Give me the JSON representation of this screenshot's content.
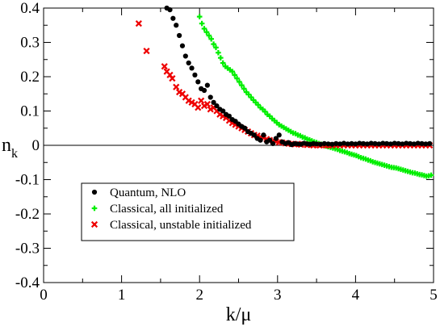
{
  "chart_data": {
    "type": "scatter",
    "title": "",
    "xlabel": "k/μ",
    "ylabel": "n",
    "ylabel_subscript": "k",
    "xlim": [
      0,
      5
    ],
    "ylim": [
      -0.4,
      0.4
    ],
    "x_ticks": [
      0,
      1,
      2,
      3,
      4,
      5
    ],
    "x_tick_labels": [
      "0",
      "1",
      "2",
      "3",
      "4",
      "5"
    ],
    "y_ticks": [
      -0.4,
      -0.3,
      -0.2,
      -0.1,
      0,
      0.1,
      0.2,
      0.3,
      0.4
    ],
    "y_tick_labels": [
      "-0.4",
      "-0.3",
      "-0.2",
      "-0.1",
      "0",
      "0.1",
      "0.2",
      "0.3",
      "0.4"
    ],
    "grid": false,
    "zero_line": true,
    "legend_position": "bottom-left",
    "series": [
      {
        "name": "Quantum, NLO",
        "marker": "circle",
        "color": "#000000",
        "points": [
          [
            1.58,
            0.4
          ],
          [
            1.62,
            0.395
          ],
          [
            1.66,
            0.37
          ],
          [
            1.7,
            0.35
          ],
          [
            1.74,
            0.32
          ],
          [
            1.78,
            0.29
          ],
          [
            1.82,
            0.26
          ],
          [
            1.86,
            0.24
          ],
          [
            1.9,
            0.225
          ],
          [
            1.94,
            0.205
          ],
          [
            1.98,
            0.185
          ],
          [
            2.02,
            0.165
          ],
          [
            2.06,
            0.16
          ],
          [
            2.1,
            0.175
          ],
          [
            2.14,
            0.14
          ],
          [
            2.18,
            0.125
          ],
          [
            2.22,
            0.115
          ],
          [
            2.26,
            0.105
          ],
          [
            2.3,
            0.1
          ],
          [
            2.34,
            0.09
          ],
          [
            2.38,
            0.085
          ],
          [
            2.42,
            0.075
          ],
          [
            2.46,
            0.07
          ],
          [
            2.5,
            0.062
          ],
          [
            2.54,
            0.055
          ],
          [
            2.58,
            0.05
          ],
          [
            2.62,
            0.04
          ],
          [
            2.66,
            0.035
          ],
          [
            2.7,
            0.03
          ],
          [
            2.74,
            0.02
          ],
          [
            2.78,
            0.015
          ],
          [
            2.82,
            0.03
          ],
          [
            2.86,
            0.01
          ],
          [
            2.9,
            0.015
          ],
          [
            2.94,
            0.005
          ],
          [
            2.98,
            0.02
          ],
          [
            3.02,
            0.03
          ],
          [
            3.06,
            0.01
          ],
          [
            3.1,
            0.005
          ],
          [
            3.14,
            0.008
          ],
          [
            3.18,
            0.002
          ],
          [
            3.22,
            0.005
          ],
          [
            3.26,
            0.004
          ],
          [
            3.3,
            0.003
          ],
          [
            3.34,
            0.006
          ],
          [
            3.38,
            0.004
          ],
          [
            3.42,
            0.003
          ],
          [
            3.46,
            0.005
          ],
          [
            3.5,
            0.004
          ],
          [
            3.55,
            0.003
          ],
          [
            3.6,
            0.005
          ],
          [
            3.65,
            0.004
          ],
          [
            3.7,
            0.003
          ],
          [
            3.75,
            0.005
          ],
          [
            3.8,
            0.004
          ],
          [
            3.85,
            0.006
          ],
          [
            3.9,
            0.004
          ],
          [
            3.95,
            0.005
          ],
          [
            4.0,
            0.004
          ],
          [
            4.05,
            0.006
          ],
          [
            4.1,
            0.005
          ],
          [
            4.15,
            0.004
          ],
          [
            4.2,
            0.006
          ],
          [
            4.25,
            0.005
          ],
          [
            4.3,
            0.004
          ],
          [
            4.35,
            0.006
          ],
          [
            4.4,
            0.005
          ],
          [
            4.45,
            0.004
          ],
          [
            4.5,
            0.006
          ],
          [
            4.55,
            0.005
          ],
          [
            4.6,
            0.004
          ],
          [
            4.65,
            0.006
          ],
          [
            4.7,
            0.005
          ],
          [
            4.75,
            0.004
          ],
          [
            4.8,
            0.006
          ],
          [
            4.85,
            0.005
          ],
          [
            4.9,
            0.004
          ],
          [
            4.95,
            0.005
          ]
        ]
      },
      {
        "name": "Classical, all initialized",
        "marker": "plus",
        "color": "#00ee00",
        "points": [
          [
            2.0,
            0.375
          ],
          [
            2.03,
            0.355
          ],
          [
            2.06,
            0.34
          ],
          [
            2.09,
            0.33
          ],
          [
            2.12,
            0.32
          ],
          [
            2.15,
            0.31
          ],
          [
            2.18,
            0.295
          ],
          [
            2.21,
            0.285
          ],
          [
            2.24,
            0.27
          ],
          [
            2.27,
            0.255
          ],
          [
            2.3,
            0.24
          ],
          [
            2.33,
            0.23
          ],
          [
            2.36,
            0.225
          ],
          [
            2.39,
            0.22
          ],
          [
            2.42,
            0.215
          ],
          [
            2.45,
            0.205
          ],
          [
            2.48,
            0.195
          ],
          [
            2.51,
            0.185
          ],
          [
            2.54,
            0.175
          ],
          [
            2.57,
            0.165
          ],
          [
            2.6,
            0.155
          ],
          [
            2.63,
            0.148
          ],
          [
            2.66,
            0.14
          ],
          [
            2.69,
            0.132
          ],
          [
            2.72,
            0.125
          ],
          [
            2.75,
            0.118
          ],
          [
            2.78,
            0.11
          ],
          [
            2.81,
            0.105
          ],
          [
            2.84,
            0.098
          ],
          [
            2.87,
            0.09
          ],
          [
            2.9,
            0.085
          ],
          [
            2.93,
            0.078
          ],
          [
            2.96,
            0.072
          ],
          [
            2.99,
            0.066
          ],
          [
            3.02,
            0.06
          ],
          [
            3.05,
            0.056
          ],
          [
            3.08,
            0.052
          ],
          [
            3.11,
            0.048
          ],
          [
            3.14,
            0.044
          ],
          [
            3.17,
            0.04
          ],
          [
            3.2,
            0.036
          ],
          [
            3.23,
            0.034
          ],
          [
            3.26,
            0.03
          ],
          [
            3.29,
            0.028
          ],
          [
            3.32,
            0.024
          ],
          [
            3.35,
            0.022
          ],
          [
            3.38,
            0.018
          ],
          [
            3.41,
            0.016
          ],
          [
            3.44,
            0.013
          ],
          [
            3.47,
            0.01
          ],
          [
            3.5,
            0.008
          ],
          [
            3.53,
            0.005
          ],
          [
            3.56,
            0.003
          ],
          [
            3.59,
            0.0
          ],
          [
            3.62,
            -0.002
          ],
          [
            3.65,
            -0.004
          ],
          [
            3.68,
            -0.006
          ],
          [
            3.71,
            -0.008
          ],
          [
            3.74,
            -0.01
          ],
          [
            3.77,
            -0.012
          ],
          [
            3.8,
            -0.015
          ],
          [
            3.83,
            -0.017
          ],
          [
            3.86,
            -0.019
          ],
          [
            3.89,
            -0.021
          ],
          [
            3.92,
            -0.024
          ],
          [
            3.95,
            -0.026
          ],
          [
            3.98,
            -0.028
          ],
          [
            4.01,
            -0.03
          ],
          [
            4.04,
            -0.033
          ],
          [
            4.07,
            -0.036
          ],
          [
            4.1,
            -0.038
          ],
          [
            4.13,
            -0.04
          ],
          [
            4.16,
            -0.043
          ],
          [
            4.19,
            -0.045
          ],
          [
            4.22,
            -0.048
          ],
          [
            4.25,
            -0.05
          ],
          [
            4.28,
            -0.052
          ],
          [
            4.31,
            -0.054
          ],
          [
            4.34,
            -0.056
          ],
          [
            4.37,
            -0.058
          ],
          [
            4.4,
            -0.06
          ],
          [
            4.43,
            -0.062
          ],
          [
            4.46,
            -0.064
          ],
          [
            4.49,
            -0.065
          ],
          [
            4.52,
            -0.066
          ],
          [
            4.55,
            -0.068
          ],
          [
            4.58,
            -0.07
          ],
          [
            4.61,
            -0.072
          ],
          [
            4.64,
            -0.074
          ],
          [
            4.67,
            -0.076
          ],
          [
            4.7,
            -0.078
          ],
          [
            4.73,
            -0.08
          ],
          [
            4.76,
            -0.081
          ],
          [
            4.79,
            -0.083
          ],
          [
            4.82,
            -0.085
          ],
          [
            4.85,
            -0.086
          ],
          [
            4.88,
            -0.088
          ],
          [
            4.91,
            -0.09
          ],
          [
            4.94,
            -0.089
          ],
          [
            4.97,
            -0.087
          ]
        ]
      },
      {
        "name": "Classical, unstable initialized",
        "marker": "x",
        "color": "#ee0000",
        "points": [
          [
            1.22,
            0.355
          ],
          [
            1.32,
            0.275
          ],
          [
            1.55,
            0.23
          ],
          [
            1.58,
            0.215
          ],
          [
            1.62,
            0.205
          ],
          [
            1.65,
            0.195
          ],
          [
            1.7,
            0.17
          ],
          [
            1.74,
            0.155
          ],
          [
            1.78,
            0.15
          ],
          [
            1.82,
            0.14
          ],
          [
            1.86,
            0.13
          ],
          [
            1.9,
            0.125
          ],
          [
            1.94,
            0.12
          ],
          [
            1.98,
            0.11
          ],
          [
            2.02,
            0.13
          ],
          [
            2.06,
            0.115
          ],
          [
            2.1,
            0.12
          ],
          [
            2.14,
            0.105
          ],
          [
            2.18,
            0.11
          ],
          [
            2.22,
            0.1
          ],
          [
            2.26,
            0.09
          ],
          [
            2.3,
            0.085
          ],
          [
            2.34,
            0.08
          ],
          [
            2.38,
            0.072
          ],
          [
            2.42,
            0.065
          ],
          [
            2.46,
            0.06
          ],
          [
            2.5,
            0.055
          ],
          [
            2.54,
            0.05
          ],
          [
            2.58,
            0.045
          ],
          [
            2.62,
            0.04
          ],
          [
            2.66,
            0.035
          ],
          [
            2.7,
            0.03
          ],
          [
            2.74,
            0.028
          ],
          [
            2.78,
            0.024
          ],
          [
            2.82,
            0.022
          ],
          [
            2.86,
            0.018
          ],
          [
            2.9,
            0.015
          ],
          [
            2.94,
            0.013
          ],
          [
            2.98,
            0.011
          ],
          [
            3.02,
            0.009
          ],
          [
            3.06,
            0.008
          ],
          [
            3.1,
            0.006
          ],
          [
            3.14,
            0.005
          ],
          [
            3.18,
            0.004
          ],
          [
            3.22,
            0.003
          ],
          [
            3.26,
            0.004
          ],
          [
            3.3,
            0.002
          ],
          [
            3.34,
            0.003
          ],
          [
            3.38,
            0.001
          ],
          [
            3.42,
            0.002
          ],
          [
            3.46,
            0.0
          ],
          [
            3.5,
            0.001
          ],
          [
            3.54,
            0.0
          ],
          [
            3.58,
            0.001
          ],
          [
            3.62,
            0.0
          ],
          [
            3.66,
            0.0
          ],
          [
            3.7,
            0.0
          ],
          [
            3.75,
            0.0
          ],
          [
            3.8,
            0.0
          ],
          [
            3.85,
            0.0
          ],
          [
            3.9,
            0.0
          ],
          [
            3.95,
            0.0
          ],
          [
            4.0,
            0.0
          ],
          [
            4.05,
            0.0
          ],
          [
            4.1,
            0.0
          ],
          [
            4.15,
            0.0
          ],
          [
            4.2,
            0.0
          ],
          [
            4.25,
            0.0
          ],
          [
            4.3,
            0.0
          ],
          [
            4.35,
            0.0
          ],
          [
            4.4,
            0.0
          ],
          [
            4.45,
            0.0
          ],
          [
            4.5,
            0.0
          ],
          [
            4.55,
            0.0
          ],
          [
            4.6,
            0.0
          ],
          [
            4.65,
            0.0
          ],
          [
            4.7,
            0.0
          ],
          [
            4.75,
            0.0
          ],
          [
            4.8,
            0.0
          ],
          [
            4.85,
            0.0
          ],
          [
            4.9,
            0.0
          ],
          [
            4.95,
            0.0
          ]
        ]
      }
    ]
  }
}
